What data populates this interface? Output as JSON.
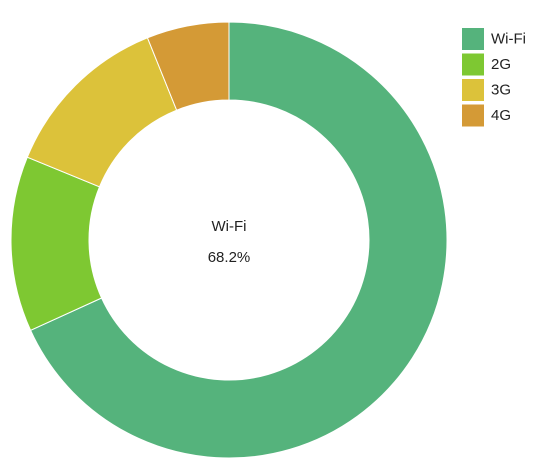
{
  "chart_data": {
    "type": "donut",
    "categories": [
      "Wi-Fi",
      "2G",
      "3G",
      "4G"
    ],
    "values": [
      68.2,
      13.0,
      12.7,
      6.1
    ],
    "value_labels": [
      "68.2%",
      null,
      null,
      null
    ],
    "colors": [
      "#55b37c",
      "#7ec832",
      "#dcc23a",
      "#d49a36"
    ],
    "legend": "upper right"
  }
}
